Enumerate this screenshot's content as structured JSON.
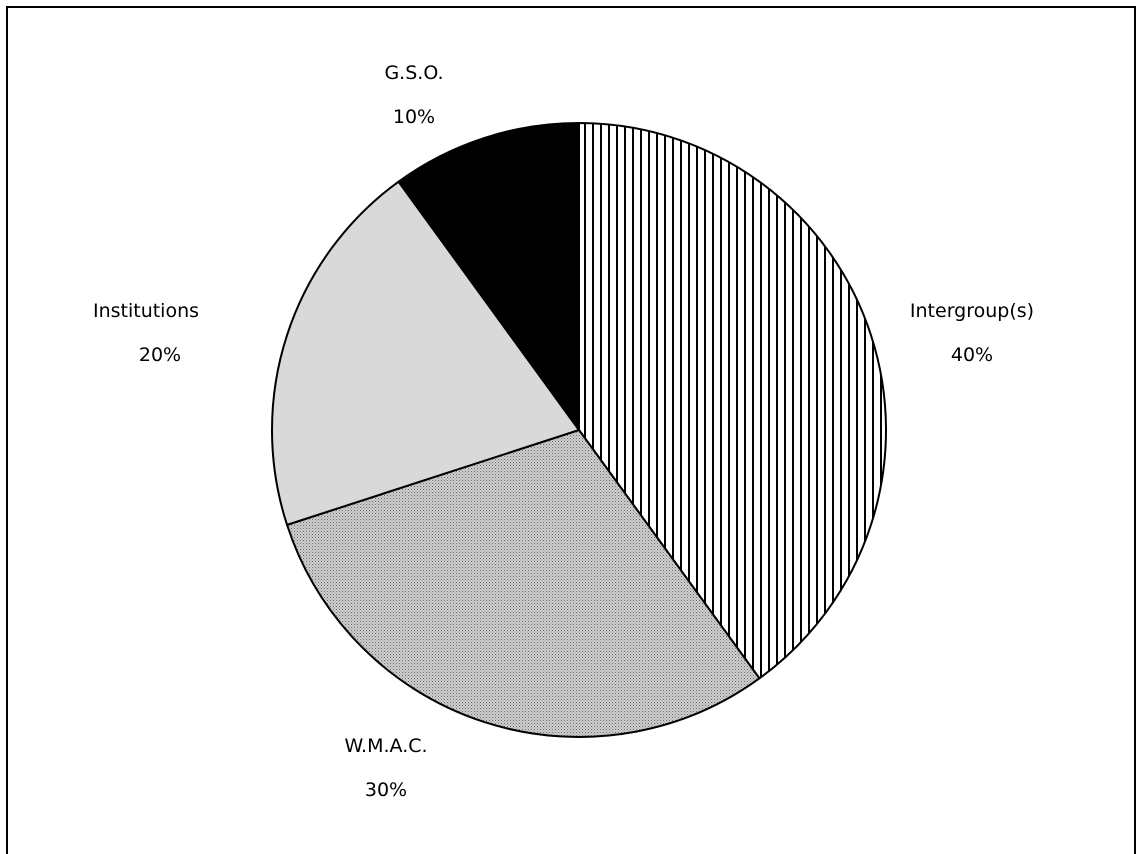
{
  "chart_data": {
    "type": "pie",
    "title": "",
    "slices": [
      {
        "label": "Intergroup(s)",
        "value": 40,
        "display": "40%",
        "fill": "vertical-stripes"
      },
      {
        "label": "W.M.A.C.",
        "value": 30,
        "display": "30%",
        "fill": "dotted-gray"
      },
      {
        "label": "Institutions",
        "value": 20,
        "display": "20%",
        "fill": "#d9d9d9"
      },
      {
        "label": "G.S.O.",
        "value": 10,
        "display": "10%",
        "fill": "#000000"
      }
    ],
    "start": "12 o'clock",
    "direction": "clockwise",
    "legend": "none",
    "labels": "outside"
  }
}
